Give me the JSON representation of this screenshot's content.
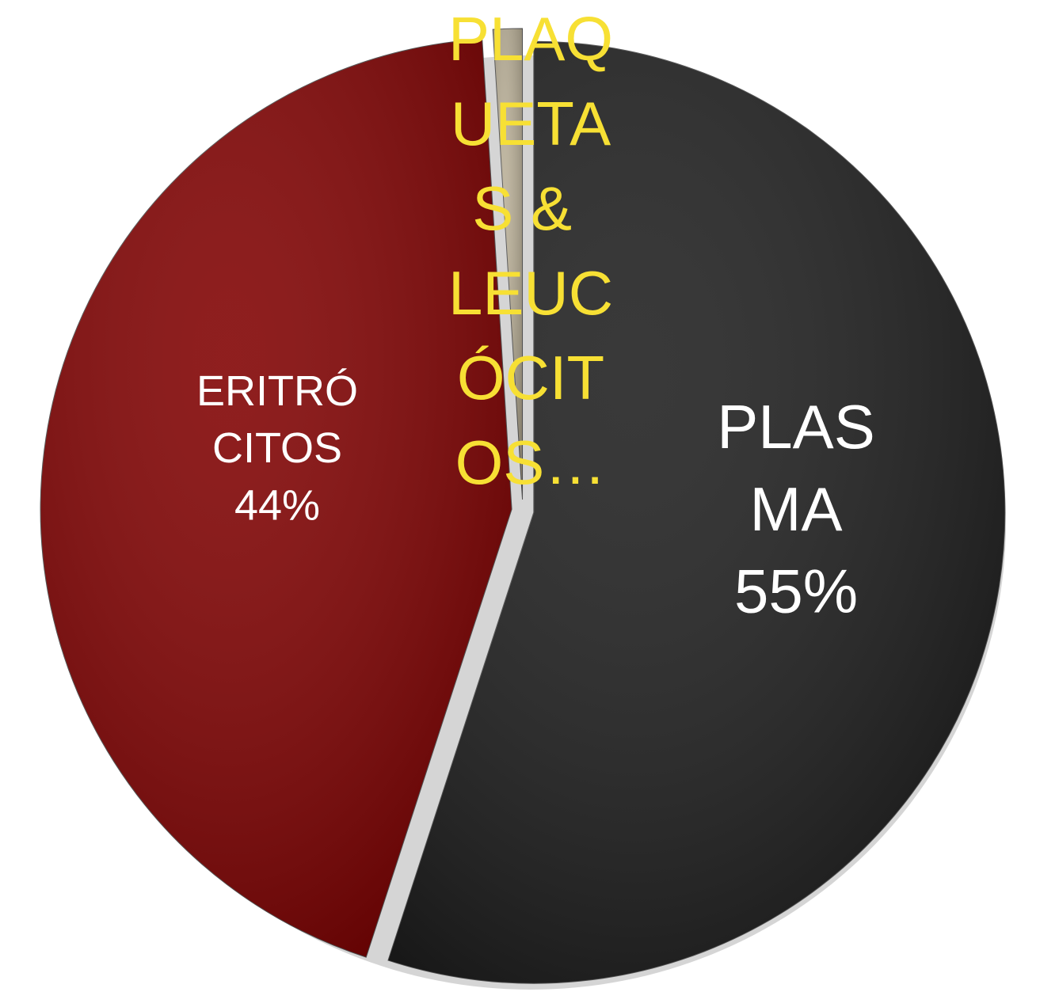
{
  "chart_data": {
    "type": "pie",
    "categories": [
      "PLASMA",
      "ERITRÓCITOS",
      "PLAQUETAS & LEUCÓCITOS…"
    ],
    "values": [
      55,
      44,
      1
    ],
    "value_labels": [
      "55%",
      "44%",
      null
    ],
    "colors": [
      "#1e1e1e",
      "#800000",
      "#b9af97"
    ]
  }
}
